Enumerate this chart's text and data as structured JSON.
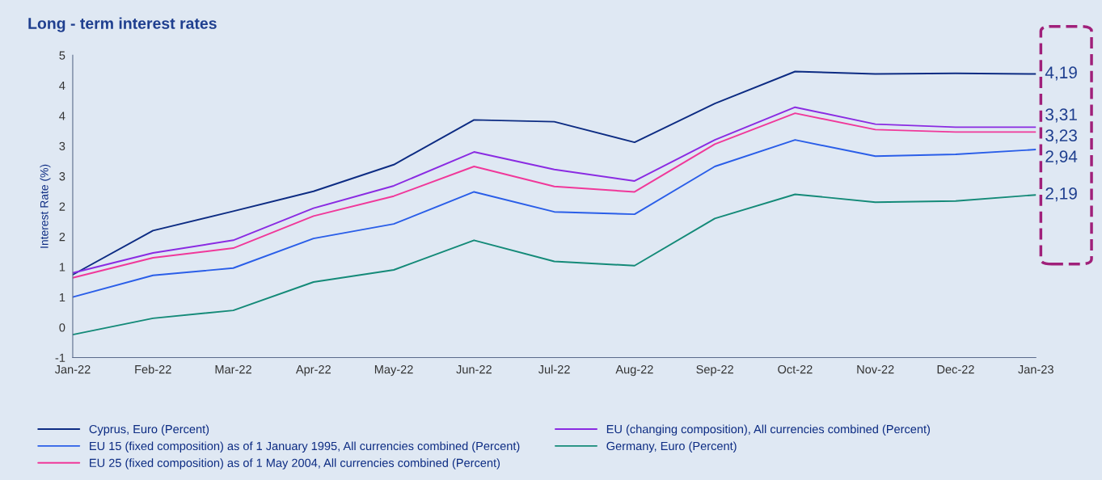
{
  "chart_data": {
    "type": "line",
    "title": "Long - term interest rates",
    "ylabel": "Interest Rate (%)",
    "categories": [
      "Jan-22",
      "Feb-22",
      "Mar-22",
      "Apr-22",
      "May-22",
      "Jun-22",
      "Jul-22",
      "Aug-22",
      "Sep-22",
      "Oct-22",
      "Nov-22",
      "Dec-22",
      "Jan-23"
    ],
    "series": [
      {
        "name": "Cyprus, Euro (Percent)",
        "color": "#0d2c83",
        "values": [
          0.87,
          1.6,
          1.92,
          2.25,
          2.69,
          3.43,
          3.4,
          3.06,
          3.7,
          4.23,
          4.19,
          4.2,
          4.19
        ]
      },
      {
        "name": "EU 15 (fixed composition) as of 1 January 1995, All currencies combined (Percent)",
        "color": "#2a5ee8",
        "values": [
          0.5,
          0.86,
          0.98,
          1.47,
          1.71,
          2.24,
          1.91,
          1.87,
          2.66,
          3.1,
          2.83,
          2.86,
          2.94
        ]
      },
      {
        "name": "EU 25 (fixed composition) as of 1 May 2004, All currencies combined (Percent)",
        "color": "#f0389a",
        "values": [
          0.82,
          1.15,
          1.31,
          1.84,
          2.17,
          2.66,
          2.33,
          2.24,
          3.03,
          3.54,
          3.27,
          3.23,
          3.23
        ]
      },
      {
        "name": "EU (changing composition), All currencies combined (Percent)",
        "color": "#8a2be2",
        "values": [
          0.9,
          1.23,
          1.44,
          1.97,
          2.34,
          2.9,
          2.61,
          2.42,
          3.1,
          3.64,
          3.36,
          3.31,
          3.31
        ]
      },
      {
        "name": "Germany, Euro (Percent)",
        "color": "#148a78",
        "values": [
          -0.12,
          0.15,
          0.28,
          0.75,
          0.95,
          1.44,
          1.09,
          1.02,
          1.8,
          2.2,
          2.07,
          2.09,
          2.19
        ]
      }
    ],
    "ylim": [
      -0.5,
      4.5
    ],
    "yticks": [
      {
        "value": -0.5,
        "label": "-1"
      },
      0,
      {
        "value": 0.5,
        "label": "1"
      },
      1,
      {
        "value": 1.5,
        "label": "2"
      },
      2,
      {
        "value": 2.5,
        "label": "3"
      },
      3,
      {
        "value": 3.5,
        "label": "4"
      },
      4,
      {
        "value": 4.5,
        "label": "5"
      }
    ],
    "annotations": [
      {
        "text": "4,19",
        "x": "Jan-23",
        "y": 4.19
      },
      {
        "text": "3,31",
        "x": "Jan-23",
        "y": 3.31
      },
      {
        "text": "3,23",
        "x": "Jan-23",
        "y": 3.23
      },
      {
        "text": "2,94",
        "x": "Jan-23",
        "y": 2.94
      },
      {
        "text": "2,19",
        "x": "Jan-23",
        "y": 2.19
      }
    ],
    "grid": false,
    "legend": "bottom",
    "marker": "none",
    "line_style": "solid"
  }
}
